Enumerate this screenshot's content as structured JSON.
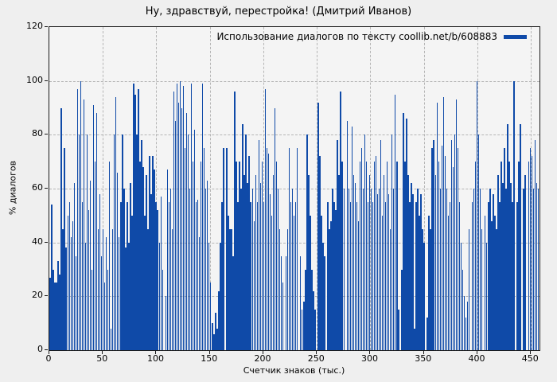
{
  "colors": {
    "bar": "#0f4aa8",
    "plot_bg": "#f4f4f4",
    "outer_bg": "#efefef",
    "grid": "#b5b5b5",
    "border": "#1a1a1a",
    "text": "#000000"
  },
  "chart_data": {
    "type": "bar",
    "title": "Ну, здравствуй, перестройка! (Дмитрий Иванов)",
    "legend": "Использование диалогов по тексту coollib.net/b/608883",
    "legend_position": "top-right-inside",
    "xlabel": "Счетчик знаков (тыс.)",
    "ylabel": "% диалогов",
    "xlim": [
      0,
      458
    ],
    "ylim": [
      0,
      120
    ],
    "x_ticks": [
      0,
      50,
      100,
      150,
      200,
      250,
      300,
      350,
      400,
      450
    ],
    "y_ticks": [
      0,
      20,
      40,
      60,
      80,
      100,
      120
    ],
    "grid": true,
    "x_start": 0.75,
    "x_step": 1.5,
    "values": [
      27,
      54,
      30,
      25,
      25,
      33,
      28,
      90,
      45,
      75,
      38,
      50,
      55,
      42,
      48,
      62,
      35,
      97,
      80,
      100,
      55,
      93,
      40,
      80,
      52,
      63,
      30,
      91,
      70,
      88,
      45,
      58,
      35,
      45,
      25,
      42,
      30,
      70,
      8,
      45,
      80,
      94,
      66,
      42,
      55,
      80,
      60,
      38,
      55,
      40,
      62,
      50,
      99,
      95,
      80,
      97,
      70,
      78,
      68,
      50,
      65,
      45,
      72,
      58,
      72,
      67,
      55,
      52,
      40,
      57,
      30,
      0,
      20,
      67,
      55,
      60,
      45,
      96,
      85,
      99,
      92,
      100,
      90,
      98,
      75,
      88,
      80,
      60,
      99,
      70,
      82,
      55,
      56,
      42,
      70,
      99,
      75,
      60,
      63,
      40,
      25,
      10,
      6,
      14,
      8,
      22,
      40,
      55,
      75,
      0,
      75,
      50,
      45,
      45,
      35,
      96,
      70,
      55,
      70,
      60,
      84,
      65,
      80,
      62,
      72,
      55,
      60,
      48,
      65,
      55,
      78,
      62,
      70,
      55,
      97,
      75,
      73,
      58,
      50,
      65,
      90,
      70,
      60,
      45,
      35,
      25,
      0,
      35,
      45,
      75,
      55,
      60,
      50,
      55,
      75,
      0,
      35,
      15,
      18,
      30,
      80,
      65,
      50,
      30,
      22,
      15,
      0,
      92,
      72,
      50,
      40,
      35,
      0,
      55,
      45,
      48,
      60,
      55,
      52,
      78,
      65,
      96,
      70,
      60,
      0,
      85,
      60,
      55,
      83,
      65,
      62,
      55,
      48,
      70,
      75,
      60,
      80,
      70,
      55,
      65,
      60,
      55,
      70,
      72,
      58,
      60,
      78,
      50,
      65,
      55,
      70,
      58,
      45,
      80,
      60,
      95,
      70,
      15,
      0,
      30,
      88,
      70,
      86,
      65,
      55,
      62,
      58,
      8,
      55,
      60,
      50,
      58,
      45,
      40,
      0,
      12,
      50,
      45,
      75,
      78,
      65,
      92,
      70,
      60,
      76,
      94,
      72,
      60,
      50,
      55,
      78,
      68,
      80,
      93,
      75,
      55,
      40,
      30,
      20,
      12,
      18,
      45,
      0,
      55,
      60,
      70,
      100,
      80,
      60,
      45,
      0,
      50,
      40,
      55,
      60,
      48,
      58,
      50,
      45,
      65,
      55,
      70,
      62,
      75,
      60,
      84,
      70,
      62,
      55,
      100,
      0,
      55,
      70,
      84,
      0,
      60,
      65,
      0,
      70,
      75,
      72,
      60,
      78,
      62,
      60
    ]
  }
}
